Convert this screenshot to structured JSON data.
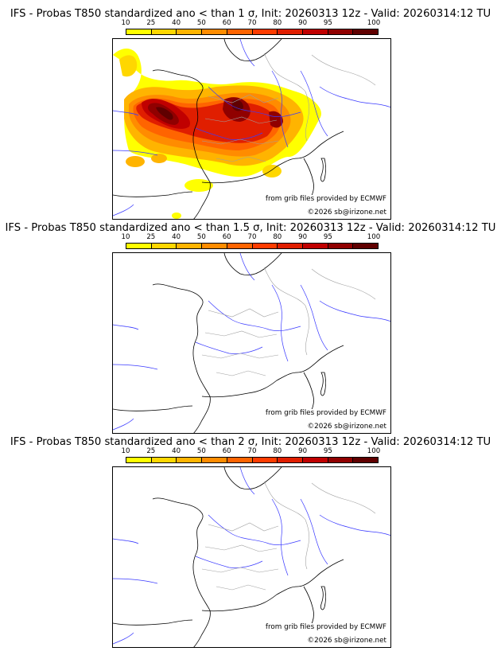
{
  "colors": {
    "scale": [
      "#ffff00",
      "#ffd700",
      "#ffb400",
      "#ff8c00",
      "#ff6400",
      "#ff3c00",
      "#e01e00",
      "#c00000",
      "#900000",
      "#600000"
    ],
    "coast": "#000000",
    "rivers": "#3a3aff",
    "borders": "#a0a0a0"
  },
  "scale_labels": [
    "10",
    "25",
    "40",
    "50",
    "60",
    "70",
    "80",
    "90",
    "95",
    "100"
  ],
  "panels": [
    {
      "title": "IFS - Probas T850  standardized ano < than 1 σ, Init: 20260313 12z - Valid: 20260314:12 TU",
      "threshold_sigma": 1,
      "has_field": true,
      "source": "from grib files provided by ECMWF",
      "copyright": "©2026 sb@irizone.net"
    },
    {
      "title": "IFS - Probas T850  standardized ano < than 1.5 σ, Init: 20260313 12z - Valid: 20260314:12 TU",
      "threshold_sigma": 1.5,
      "has_field": false,
      "source": "from grib files provided by ECMWF",
      "copyright": "©2026 sb@irizone.net"
    },
    {
      "title": "IFS - Probas T850  standardized ano < than 2 σ, Init: 20260313 12z - Valid: 20260314:12 TU",
      "threshold_sigma": 2,
      "has_field": false,
      "source": "from grib files provided by ECMWF",
      "copyright": "©2026 sb@irizone.net"
    }
  ]
}
